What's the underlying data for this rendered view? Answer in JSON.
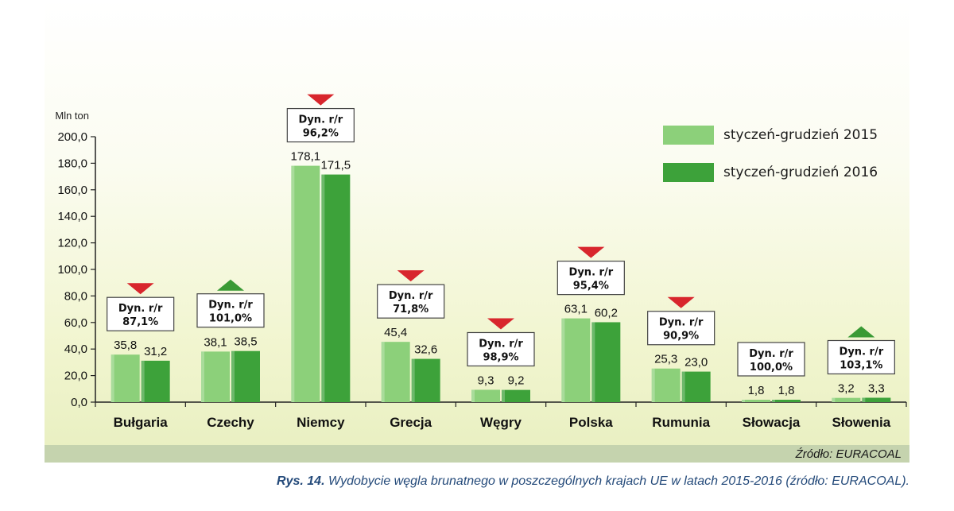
{
  "chart_data": {
    "type": "bar",
    "ylabel": "Mln ton",
    "ylim": [
      0,
      200
    ],
    "yticks": [
      "0,0",
      "20,0",
      "40,0",
      "60,0",
      "80,0",
      "100,0",
      "120,0",
      "140,0",
      "160,0",
      "180,0",
      "200,0"
    ],
    "categories": [
      "Bułgaria",
      "Czechy",
      "Niemcy",
      "Grecja",
      "Węgry",
      "Polska",
      "Rumunia",
      "Słowacja",
      "Słowenia"
    ],
    "series": [
      {
        "name": "styczeń-grudzień 2015",
        "values": [
          35.8,
          38.1,
          178.1,
          45.4,
          9.3,
          63.1,
          25.3,
          1.8,
          3.2
        ],
        "labels": [
          "35,8",
          "38,1",
          "178,1",
          "45,4",
          "9,3",
          "63,1",
          "25,3",
          "1,8",
          "3,2"
        ],
        "color": "#8cd07a"
      },
      {
        "name": "styczeń-grudzień 2016",
        "values": [
          31.2,
          38.5,
          171.5,
          32.6,
          9.2,
          60.2,
          23.0,
          1.8,
          3.3
        ],
        "labels": [
          "31,2",
          "38,5",
          "171,5",
          "32,6",
          "9,2",
          "60,2",
          "23,0",
          "1,8",
          "3,3"
        ],
        "color": "#3da23a"
      }
    ],
    "annotations": [
      {
        "title": "Dyn. r/r",
        "value": "87,1%",
        "arrow": "down"
      },
      {
        "title": "Dyn. r/r",
        "value": "101,0%",
        "arrow": "up"
      },
      {
        "title": "Dyn. r/r",
        "value": "96,2%",
        "arrow": "down"
      },
      {
        "title": "Dyn. r/r",
        "value": "71,8%",
        "arrow": "down"
      },
      {
        "title": "Dyn. r/r",
        "value": "98,9%",
        "arrow": "down"
      },
      {
        "title": "Dyn. r/r",
        "value": "95,4%",
        "arrow": "down"
      },
      {
        "title": "Dyn. r/r",
        "value": "90,9%",
        "arrow": "down"
      },
      {
        "title": "Dyn. r/r",
        "value": "100,0%",
        "arrow": "none"
      },
      {
        "title": "Dyn. r/r",
        "value": "103,1%",
        "arrow": "up"
      }
    ],
    "legend_position": "top-right",
    "grid": false
  },
  "colors": {
    "down_arrow": "#d8262d",
    "up_arrow": "#3a9a35",
    "axis": "#222222"
  },
  "source": "Źródło: EURACOAL",
  "caption": {
    "label": "Rys. 14.",
    "text": " Wydobycie węgla brunatnego w poszczególnych krajach UE w latach 2015-2016 (źródło: EURACOAL)."
  }
}
